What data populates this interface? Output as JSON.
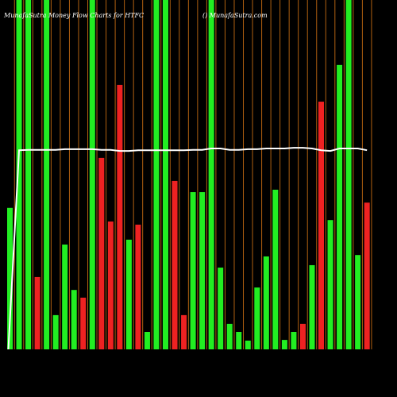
{
  "chart_data": {
    "type": "bar",
    "title": "MunafaSutra  Money Flow  Charts for HTFC",
    "subtitle": "() MunafaSutra.com",
    "categories": [
      null,
      null,
      null,
      null,
      null,
      null,
      null,
      null,
      null,
      null,
      null,
      null,
      null,
      null,
      null,
      null,
      null,
      null,
      null,
      null,
      null,
      null,
      null,
      null,
      null,
      null,
      null,
      null,
      null,
      null,
      null,
      null,
      null,
      null,
      null,
      null,
      null,
      null,
      null,
      null
    ],
    "values": [
      40.5,
      100,
      100,
      20.7,
      100,
      9.8,
      30,
      17,
      14.8,
      100,
      54.8,
      36.6,
      75.7,
      31.4,
      35.7,
      5,
      100,
      100,
      48.2,
      9.8,
      45,
      45,
      100,
      23.4,
      7.3,
      5,
      2.5,
      17.7,
      26.6,
      45.7,
      2.7,
      5,
      7.3,
      24.1,
      70.9,
      37,
      81.4,
      100,
      27,
      42
    ],
    "colors": [
      "#22ee22",
      "#22ee22",
      "#22ee22",
      "#ee2222",
      "#22ee22",
      "#22ee22",
      "#22ee22",
      "#22ee22",
      "#ee2222",
      "#22ee22",
      "#ee2222",
      "#ee2222",
      "#ee2222",
      "#22ee22",
      "#ee2222",
      "#22ee22",
      "#22ee22",
      "#22ee22",
      "#ee2222",
      "#ee2222",
      "#22ee22",
      "#22ee22",
      "#22ee22",
      "#22ee22",
      "#22ee22",
      "#22ee22",
      "#22ee22",
      "#22ee22",
      "#22ee22",
      "#22ee22",
      "#22ee22",
      "#22ee22",
      "#ee2222",
      "#22ee22",
      "#ee2222",
      "#22ee22",
      "#22ee22",
      "#22ee22",
      "#22ee22",
      "#ee2222"
    ],
    "line": {
      "color": "#ffffff",
      "values": [
        0,
        57,
        57.1,
        57.1,
        57.1,
        57.1,
        57.3,
        57.3,
        57.3,
        57.3,
        57.1,
        57.1,
        56.8,
        56.8,
        57,
        57,
        57,
        57,
        57,
        57,
        57.1,
        57.1,
        57.5,
        57.5,
        57.1,
        57.1,
        57.3,
        57.3,
        57.5,
        57.5,
        57.5,
        57.7,
        57.7,
        57.5,
        57,
        56.8,
        57.5,
        57.5,
        57.5,
        57
      ]
    },
    "ylim": [
      0,
      100
    ]
  }
}
